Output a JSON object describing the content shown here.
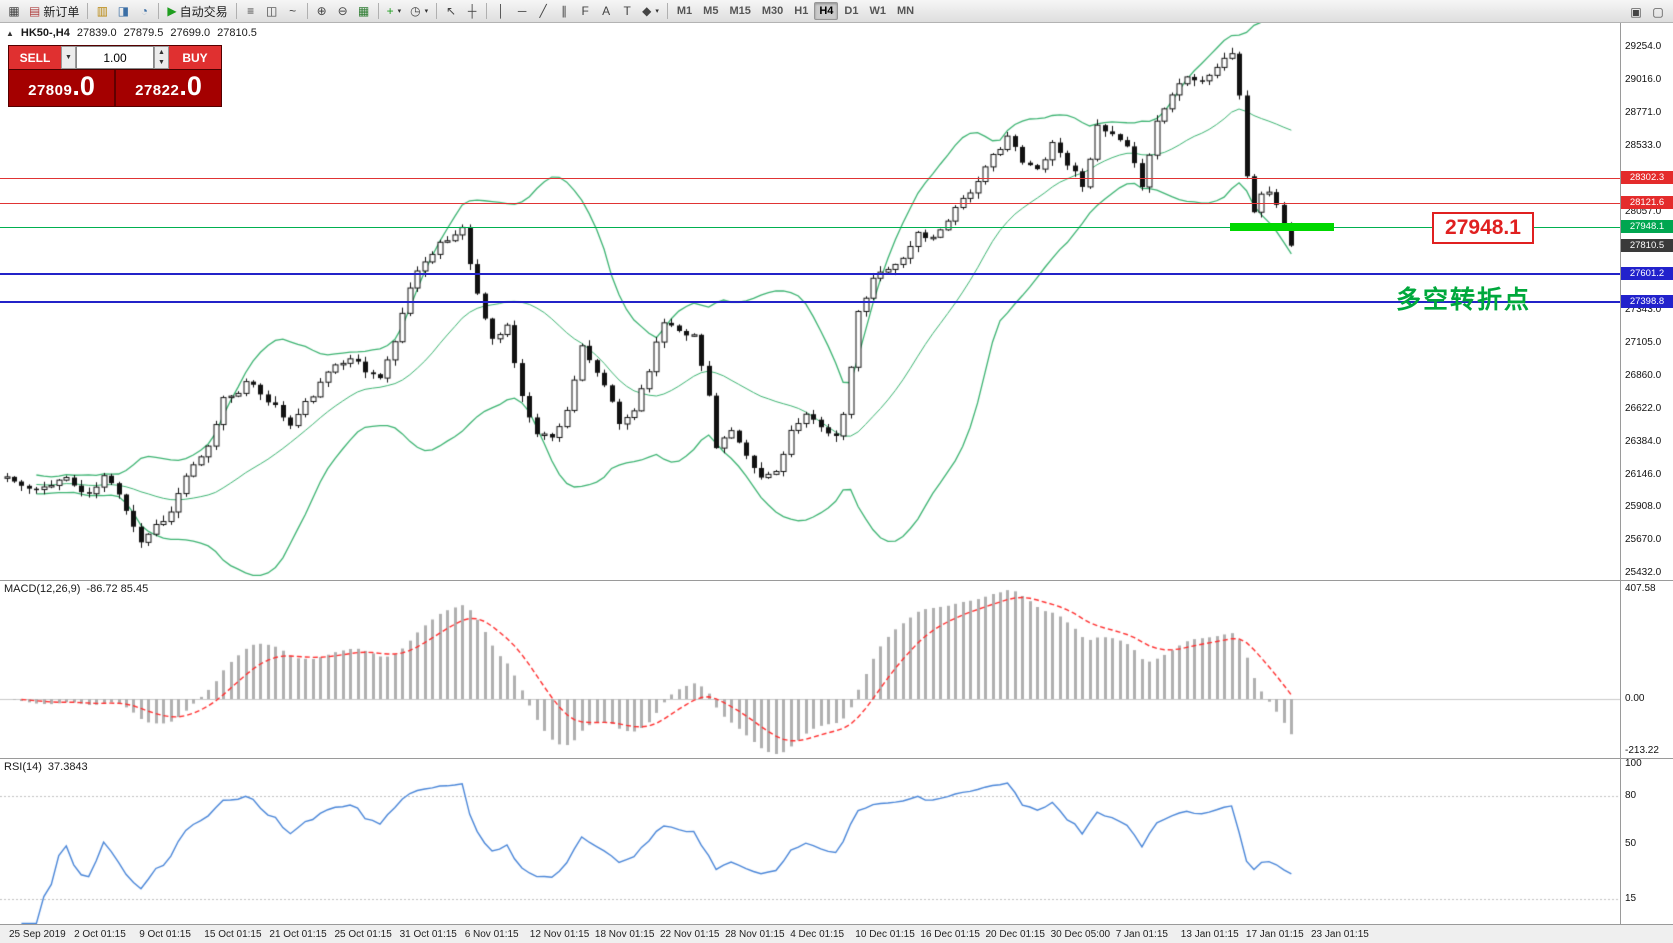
{
  "window": {
    "right_icons": [
      {
        "name": "window-restore-icon",
        "glyph": "▣"
      },
      {
        "name": "window-new-icon",
        "glyph": "▢"
      }
    ]
  },
  "toolbar": {
    "caret_glyph": "▾",
    "items": [
      {
        "name": "new-chart-icon",
        "glyph": "▦"
      },
      {
        "name": "new-order-button",
        "glyph": "▤",
        "glyph_color": "#b04040",
        "label": "新订单"
      },
      {
        "sep": true
      },
      {
        "name": "profiles-icon",
        "glyph": "▥",
        "glyph_color": "#b8860b"
      },
      {
        "name": "chart-list-icon",
        "glyph": "◨",
        "glyph_color": "#3a6ea5"
      },
      {
        "name": "alerts-icon",
        "glyph": "◔",
        "glyph_color": "#3a6ea5"
      },
      {
        "sep": true
      },
      {
        "name": "autotrading-button",
        "glyph": "▶",
        "glyph_color": "#1f9e1f",
        "label": "自动交易"
      },
      {
        "sep": true
      },
      {
        "name": "bar-chart-icon",
        "glyph": "≡"
      },
      {
        "name": "candlestick-chart-icon",
        "glyph": "◫"
      },
      {
        "name": "line-chart-icon",
        "glyph": "~"
      },
      {
        "sep": true
      },
      {
        "name": "zoom-in-icon",
        "glyph": "⊕"
      },
      {
        "name": "zoom-out-icon",
        "glyph": "⊖"
      },
      {
        "name": "tile-windows-icon",
        "glyph": "▦",
        "glyph_color": "#2e7d32"
      },
      {
        "sep": true
      },
      {
        "name": "indicators-button",
        "glyph": "+",
        "glyph_color": "#1f9e1f",
        "caret": true
      },
      {
        "name": "periods-button",
        "glyph": "◷",
        "caret": true
      },
      {
        "sep": true
      },
      {
        "name": "cursor-icon",
        "glyph": "↖"
      },
      {
        "name": "crosshair-icon",
        "glyph": "┼"
      },
      {
        "sep": true
      },
      {
        "name": "vertical-line-icon",
        "glyph": "│"
      },
      {
        "name": "horizontal-line-icon",
        "glyph": "─"
      },
      {
        "name": "trendline-icon",
        "glyph": "╱"
      },
      {
        "name": "channel-icon",
        "glyph": "∥"
      },
      {
        "name": "fibonacci-icon",
        "glyph": "F"
      },
      {
        "name": "text-icon",
        "glyph": "A"
      },
      {
        "name": "label-icon",
        "glyph": "T"
      },
      {
        "name": "shapes-button",
        "glyph": "◆",
        "caret": true
      },
      {
        "sep": true
      }
    ],
    "timeframes": [
      {
        "label": "M1"
      },
      {
        "label": "M5"
      },
      {
        "label": "M15"
      },
      {
        "label": "M30"
      },
      {
        "label": "H1"
      },
      {
        "label": "H4",
        "active": true
      },
      {
        "label": "D1"
      },
      {
        "label": "W1"
      },
      {
        "label": "MN"
      }
    ]
  },
  "header": {
    "collapse_glyph": "▲",
    "symbol": "HK50-,H4",
    "open": "27839.0",
    "high": "27879.5",
    "low": "27699.0",
    "close": "27810.5"
  },
  "trade": {
    "sell_label": "SELL",
    "buy_label": "BUY",
    "volume": "1.00",
    "dropdown_glyph": "▼",
    "step_up": "▲",
    "step_down": "▼",
    "sell_price_main": "27809",
    "sell_price_big": ".0",
    "buy_price_main": "27822",
    "buy_price_big": ".0"
  },
  "macd": {
    "label": "MACD(12,26,9)",
    "values": "-86.72 85.45",
    "axis_labels": [
      {
        "v": 407.58,
        "t": "407.58"
      },
      {
        "v": 0,
        "t": "0.00"
      },
      {
        "v": -213.22,
        "t": "-213.22"
      }
    ]
  },
  "rsi": {
    "label": "RSI(14)",
    "values": "37.3843",
    "axis_labels": [
      {
        "v": 100,
        "t": "100"
      },
      {
        "v": 80,
        "t": "80"
      },
      {
        "v": 50,
        "t": "50"
      },
      {
        "v": 15,
        "t": "15"
      }
    ],
    "levels": [
      80,
      15
    ]
  },
  "annotations": {
    "turning_point": "多空转折点",
    "price_callout": "27948.1",
    "highlight_price": 27948.1
  },
  "colors": {
    "bollinger": "#3cb371",
    "candle": "#111111",
    "bull_fill": "#ffffff",
    "line_red": "#e03434",
    "line_green": "#00b050",
    "line_blue": "#2323c8",
    "badge_red": "#e42b2b",
    "badge_green": "#00a650",
    "badge_blue": "#2222cc",
    "badge_current": "#3a3a3a",
    "macd_hist": "#b0b0b0",
    "macd_signal": "#ff3030",
    "macd_zero": "#c8c8c8",
    "rsi_line": "#4a86d8",
    "rsi_level": "#c0c0c0",
    "seg_green": "#00d800"
  },
  "chart_data": {
    "type": "candlestick",
    "symbol": "HK50-",
    "timeframe": "H4",
    "candle_count": 173,
    "noise": 26,
    "last_close": 27810.5,
    "close_anchors": [
      [
        0,
        26130
      ],
      [
        2,
        26060
      ],
      [
        4,
        26020
      ],
      [
        6,
        26090
      ],
      [
        8,
        26120
      ],
      [
        10,
        26020
      ],
      [
        11,
        25990
      ],
      [
        13,
        26130
      ],
      [
        15,
        26020
      ],
      [
        16,
        25900
      ],
      [
        18,
        25660
      ],
      [
        20,
        25780
      ],
      [
        22,
        25870
      ],
      [
        24,
        26140
      ],
      [
        26,
        26260
      ],
      [
        27,
        26340
      ],
      [
        29,
        26700
      ],
      [
        31,
        26760
      ],
      [
        32,
        26810
      ],
      [
        34,
        26740
      ],
      [
        36,
        26640
      ],
      [
        38,
        26500
      ],
      [
        40,
        26660
      ],
      [
        42,
        26800
      ],
      [
        44,
        26950
      ],
      [
        46,
        27010
      ],
      [
        48,
        26890
      ],
      [
        50,
        26860
      ],
      [
        52,
        27100
      ],
      [
        53,
        27340
      ],
      [
        55,
        27650
      ],
      [
        57,
        27740
      ],
      [
        58,
        27810
      ],
      [
        60,
        27890
      ],
      [
        61,
        27950
      ],
      [
        62,
        27700
      ],
      [
        63,
        27450
      ],
      [
        65,
        27120
      ],
      [
        67,
        27230
      ],
      [
        69,
        26700
      ],
      [
        71,
        26460
      ],
      [
        73,
        26410
      ],
      [
        75,
        26620
      ],
      [
        77,
        27060
      ],
      [
        78,
        26960
      ],
      [
        80,
        26800
      ],
      [
        82,
        26510
      ],
      [
        84,
        26620
      ],
      [
        86,
        26920
      ],
      [
        88,
        27260
      ],
      [
        90,
        27210
      ],
      [
        92,
        27150
      ],
      [
        94,
        26720
      ],
      [
        95,
        26360
      ],
      [
        97,
        26460
      ],
      [
        99,
        26260
      ],
      [
        101,
        26120
      ],
      [
        103,
        26170
      ],
      [
        105,
        26460
      ],
      [
        107,
        26560
      ],
      [
        109,
        26510
      ],
      [
        111,
        26420
      ],
      [
        112,
        26560
      ],
      [
        114,
        27310
      ],
      [
        116,
        27560
      ],
      [
        118,
        27660
      ],
      [
        120,
        27710
      ],
      [
        122,
        27900
      ],
      [
        124,
        27860
      ],
      [
        126,
        28010
      ],
      [
        128,
        28160
      ],
      [
        130,
        28260
      ],
      [
        132,
        28460
      ],
      [
        134,
        28610
      ],
      [
        136,
        28410
      ],
      [
        138,
        28360
      ],
      [
        140,
        28560
      ],
      [
        142,
        28410
      ],
      [
        144,
        28260
      ],
      [
        146,
        28660
      ],
      [
        148,
        28610
      ],
      [
        150,
        28510
      ],
      [
        152,
        28260
      ],
      [
        154,
        28710
      ],
      [
        156,
        28910
      ],
      [
        158,
        29060
      ],
      [
        160,
        29010
      ],
      [
        162,
        29110
      ],
      [
        164,
        29210
      ],
      [
        165,
        28910
      ],
      [
        166,
        28310
      ],
      [
        167,
        28060
      ],
      [
        168,
        28160
      ],
      [
        169,
        28210
      ],
      [
        170,
        28110
      ],
      [
        171,
        27960
      ],
      [
        172,
        27810.5
      ]
    ],
    "indicators": [
      {
        "name": "Bollinger Bands",
        "period": 20,
        "deviation": 2
      },
      {
        "name": "MACD",
        "fast": 12,
        "slow": 26,
        "signal": 9,
        "current": -86.72,
        "signal_current": 85.45
      },
      {
        "name": "RSI",
        "period": 14,
        "current": 37.3843
      }
    ],
    "hlines": [
      {
        "v": 28302.3,
        "c": "#e03434",
        "w": 1
      },
      {
        "v": 28121.6,
        "c": "#e03434",
        "w": 1
      },
      {
        "v": 27948.1,
        "c": "#00b050",
        "w": 1
      },
      {
        "v": 27601.2,
        "c": "#2323c8",
        "w": 2
      },
      {
        "v": 27398.8,
        "c": "#2323c8",
        "w": 2
      }
    ],
    "price_badges": [
      {
        "v": 28302.3,
        "t": "28302.3",
        "bg": "#e42b2b"
      },
      {
        "v": 28121.6,
        "t": "28121.6",
        "bg": "#e42b2b"
      },
      {
        "v": 27948.1,
        "t": "27948.1",
        "bg": "#00a650"
      },
      {
        "v": 27810.5,
        "t": "27810.5",
        "bg": "#3a3a3a"
      },
      {
        "v": 27601.2,
        "t": "27601.2",
        "bg": "#2222cc"
      },
      {
        "v": 27398.8,
        "t": "27398.8",
        "bg": "#2222cc"
      }
    ],
    "y_axis_labels": [
      {
        "v": 29254.0,
        "t": "29254.0"
      },
      {
        "v": 29016.0,
        "t": "29016.0"
      },
      {
        "v": 28771.0,
        "t": "28771.0"
      },
      {
        "v": 28533.0,
        "t": "28533.0"
      },
      {
        "v": 28057.0,
        "t": "28057.0"
      },
      {
        "v": 27343.0,
        "t": "27343.0"
      },
      {
        "v": 27105.0,
        "t": "27105.0"
      },
      {
        "v": 26860.0,
        "t": "26860.0"
      },
      {
        "v": 26622.0,
        "t": "26622.0"
      },
      {
        "v": 26384.0,
        "t": "26384.0"
      },
      {
        "v": 26146.0,
        "t": "26146.0"
      },
      {
        "v": 25908.0,
        "t": "25908.0"
      },
      {
        "v": 25670.0,
        "t": "25670.0"
      },
      {
        "v": 25432.0,
        "t": "25432.0"
      }
    ],
    "x_axis_labels": [
      "25 Sep 2019",
      "2 Oct 01:15",
      "9 Oct 01:15",
      "15 Oct 01:15",
      "21 Oct 01:15",
      "25 Oct 01:15",
      "31 Oct 01:15",
      "6 Nov 01:15",
      "12 Nov 01:15",
      "18 Nov 01:15",
      "22 Nov 01:15",
      "28 Nov 01:15",
      "4 Dec 01:15",
      "10 Dec 01:15",
      "16 Dec 01:15",
      "20 Dec 01:15",
      "30 Dec 05:00",
      "7 Jan 01:15",
      "13 Jan 01:15",
      "17 Jan 01:15",
      "23 Jan 01:15"
    ]
  }
}
